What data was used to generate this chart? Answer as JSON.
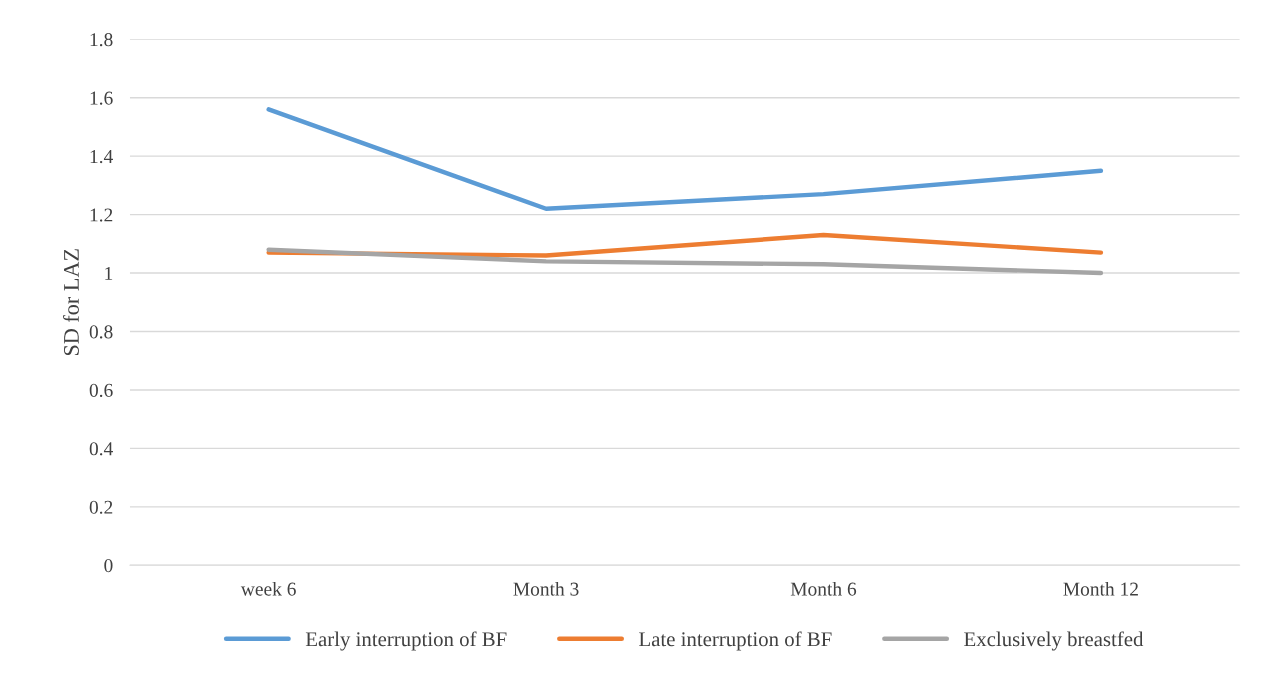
{
  "chart_data": {
    "type": "line",
    "ylabel": "SD for LAZ",
    "categories": [
      "week 6",
      "Month 3",
      "Month 6",
      "Month 12"
    ],
    "series": [
      {
        "name": "Early interruption of BF",
        "color": "#5b9bd5",
        "values": [
          1.56,
          1.22,
          1.27,
          1.35
        ]
      },
      {
        "name": "Late interruption of BF",
        "color": "#ed7d31",
        "values": [
          1.07,
          1.06,
          1.13,
          1.07
        ]
      },
      {
        "name": "Exclusively breastfed",
        "color": "#a5a5a5",
        "values": [
          1.08,
          1.04,
          1.03,
          1.0
        ]
      }
    ],
    "ylim": [
      0,
      1.8
    ],
    "yticks": [
      0,
      0.2,
      0.4,
      0.6,
      0.8,
      1,
      1.2,
      1.4,
      1.6,
      1.8
    ],
    "grid": "y",
    "legend": "bottom",
    "marker": "none",
    "line_style": "solid"
  }
}
